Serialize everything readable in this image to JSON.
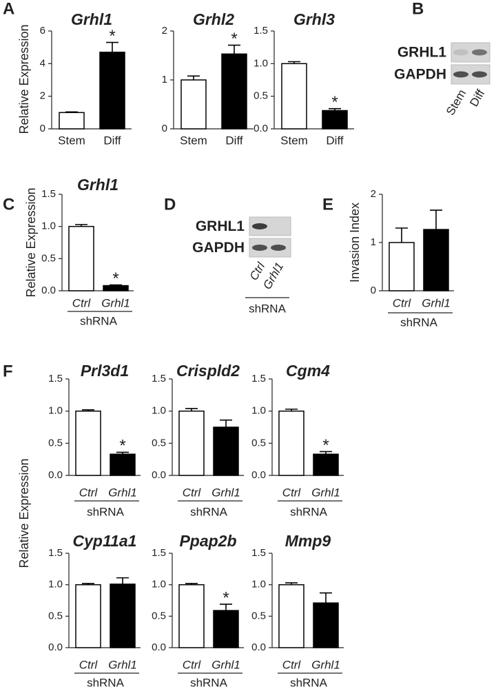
{
  "panel_labels": [
    "A",
    "B",
    "C",
    "D",
    "E",
    "F"
  ],
  "chart_data": [
    {
      "type": "bar",
      "title": "Grhl1",
      "ylabel": "Relative Expression",
      "categories": [
        "Stem",
        "Diff"
      ],
      "values": [
        1.0,
        4.7
      ],
      "errors": [
        0.04,
        0.6
      ],
      "colors": [
        "#ffffff",
        "#000000"
      ],
      "significance": [
        null,
        "*"
      ],
      "ylim": [
        0,
        6
      ],
      "yticks": [
        0,
        2,
        4,
        6
      ]
    },
    {
      "type": "bar",
      "title": "Grhl2",
      "categories": [
        "Stem",
        "Diff"
      ],
      "values": [
        1.0,
        1.53
      ],
      "errors": [
        0.08,
        0.18
      ],
      "colors": [
        "#ffffff",
        "#000000"
      ],
      "significance": [
        null,
        "*"
      ],
      "ylim": [
        0,
        2
      ],
      "yticks": [
        0,
        1,
        2
      ]
    },
    {
      "type": "bar",
      "title": "Grhl3",
      "categories": [
        "Stem",
        "Diff"
      ],
      "values": [
        1.0,
        0.28
      ],
      "errors": [
        0.03,
        0.03
      ],
      "colors": [
        "#ffffff",
        "#000000"
      ],
      "significance": [
        null,
        "*"
      ],
      "ylim": [
        0,
        1.5
      ],
      "yticks": [
        {
          "value": 0,
          "label": "0.0"
        },
        0.5,
        {
          "value": 1,
          "label": "1.0"
        },
        1.5
      ]
    },
    {
      "type": "bar",
      "title": "Grhl1",
      "ylabel": "Relative Expression",
      "group_label": "shRNA",
      "categories": [
        "Ctrl",
        "Grhl1"
      ],
      "values": [
        1.0,
        0.08
      ],
      "errors": [
        0.03,
        0.01
      ],
      "colors": [
        "#ffffff",
        "#000000"
      ],
      "significance": [
        null,
        "*"
      ],
      "ylim": [
        0,
        1.5
      ],
      "yticks": [
        {
          "value": 0,
          "label": "0.0"
        },
        0.5,
        {
          "value": 1,
          "label": "1.0"
        },
        1.5
      ]
    },
    {
      "type": "bar",
      "ylabel": "Invasion Index",
      "group_label": "shRNA",
      "categories": [
        "Ctrl",
        "Grhl1"
      ],
      "values": [
        1.0,
        1.27
      ],
      "errors": [
        0.3,
        0.4
      ],
      "colors": [
        "#ffffff",
        "#000000"
      ],
      "ylim": [
        0,
        2
      ],
      "yticks": [
        0,
        1,
        2
      ]
    },
    {
      "type": "bar",
      "title": "Prl3d1",
      "ylabel": "Relative Expression",
      "group_label": "shRNA",
      "categories": [
        "Ctrl",
        "Grhl1"
      ],
      "values": [
        1.0,
        0.33
      ],
      "errors": [
        0.02,
        0.03
      ],
      "colors": [
        "#ffffff",
        "#000000"
      ],
      "significance": [
        null,
        "*"
      ],
      "ylim": [
        0,
        1.5
      ],
      "yticks": [
        {
          "value": 0,
          "label": "0.0"
        },
        0.5,
        {
          "value": 1,
          "label": "1.0"
        },
        1.5
      ]
    },
    {
      "type": "bar",
      "title": "Crispld2",
      "group_label": "shRNA",
      "categories": [
        "Ctrl",
        "Grhl1"
      ],
      "values": [
        1.0,
        0.75
      ],
      "errors": [
        0.04,
        0.11
      ],
      "colors": [
        "#ffffff",
        "#000000"
      ],
      "ylim": [
        0,
        1.5
      ],
      "yticks": [
        {
          "value": 0,
          "label": "0.0"
        },
        0.5,
        {
          "value": 1,
          "label": "1.0"
        },
        1.5
      ]
    },
    {
      "type": "bar",
      "title": "Cgm4",
      "group_label": "shRNA",
      "categories": [
        "Ctrl",
        "Grhl1"
      ],
      "values": [
        1.0,
        0.33
      ],
      "errors": [
        0.03,
        0.04
      ],
      "colors": [
        "#ffffff",
        "#000000"
      ],
      "significance": [
        null,
        "*"
      ],
      "ylim": [
        0,
        1.5
      ],
      "yticks": [
        {
          "value": 0,
          "label": "0.0"
        },
        0.5,
        {
          "value": 1,
          "label": "1.0"
        },
        1.5
      ]
    },
    {
      "type": "bar",
      "title": "Cyp11a1",
      "group_label": "shRNA",
      "categories": [
        "Ctrl",
        "Grhl1"
      ],
      "values": [
        1.0,
        1.01
      ],
      "errors": [
        0.02,
        0.1
      ],
      "colors": [
        "#ffffff",
        "#000000"
      ],
      "ylim": [
        0,
        1.5
      ],
      "yticks": [
        {
          "value": 0,
          "label": "0.0"
        },
        0.5,
        {
          "value": 1,
          "label": "1.0"
        },
        1.5
      ]
    },
    {
      "type": "bar",
      "title": "Ppap2b",
      "group_label": "shRNA",
      "categories": [
        "Ctrl",
        "Grhl1"
      ],
      "values": [
        1.0,
        0.59
      ],
      "errors": [
        0.02,
        0.1
      ],
      "colors": [
        "#ffffff",
        "#000000"
      ],
      "significance": [
        null,
        "*"
      ],
      "ylim": [
        0,
        1.5
      ],
      "yticks": [
        {
          "value": 0,
          "label": "0.0"
        },
        0.5,
        {
          "value": 1,
          "label": "1.0"
        },
        1.5
      ]
    },
    {
      "type": "bar",
      "title": "Mmp9",
      "group_label": "shRNA",
      "categories": [
        "Ctrl",
        "Grhl1"
      ],
      "values": [
        1.0,
        0.71
      ],
      "errors": [
        0.03,
        0.16
      ],
      "colors": [
        "#ffffff",
        "#000000"
      ],
      "ylim": [
        0,
        1.5
      ],
      "yticks": [
        {
          "value": 0,
          "label": "0.0"
        },
        0.5,
        {
          "value": 1,
          "label": "1.0"
        },
        1.5
      ]
    }
  ],
  "blots": [
    {
      "rows": [
        "GRHL1",
        "GAPDH"
      ],
      "lanes": [
        "Stem",
        "Diff"
      ]
    },
    {
      "rows": [
        "GRHL1",
        "GAPDH"
      ],
      "lanes": [
        "Ctrl",
        "Grhl1"
      ],
      "group_label": "shRNA"
    }
  ]
}
